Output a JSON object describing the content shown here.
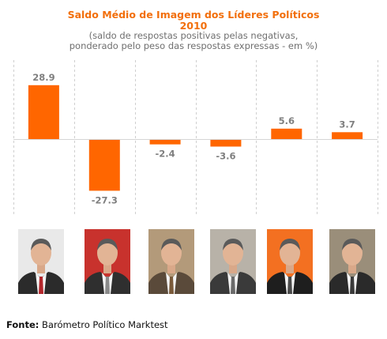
{
  "chart_data": {
    "type": "bar",
    "title": "Saldo Médio de Imagem dos Líderes Políticos",
    "title_year": "2010",
    "subtitle_line1": "(saldo de respostas positivas pelas negativas,",
    "subtitle_line2": "ponderado pelo peso das respostas expressas - em %)",
    "categories": [
      "",
      "",
      "",
      "",
      "",
      ""
    ],
    "values": [
      28.9,
      -27.3,
      -2.4,
      -3.6,
      5.6,
      3.7
    ],
    "value_labels": [
      "28.9",
      "-27.3",
      "-2.4",
      "-3.6",
      "5.6",
      "3.7"
    ],
    "ylim": [
      -30,
      32
    ],
    "grid": "vertical dashed separators",
    "legend": "none",
    "bar_color": "#ff6600",
    "label_color": "#7f7f7f"
  },
  "photos": [
    {
      "icon": "politician-portrait-1",
      "bg": "#e9e9e9",
      "suit": "#2b2b2b",
      "tie": "#b3262b"
    },
    {
      "icon": "politician-portrait-2",
      "bg": "#c8322d",
      "suit": "#2f2f2f",
      "tie": "#8a8a8a"
    },
    {
      "icon": "politician-portrait-3",
      "bg": "#b39a7a",
      "suit": "#5a4a3a",
      "tie": "#7a5a3a"
    },
    {
      "icon": "politician-portrait-4",
      "bg": "#b8b2a8",
      "suit": "#3a3a3a",
      "tie": "#6a6a6a"
    },
    {
      "icon": "politician-portrait-5",
      "bg": "#f37021",
      "suit": "#1e1e1e",
      "tie": "#4a4a4a"
    },
    {
      "icon": "politician-portrait-6",
      "bg": "#9a8e7a",
      "suit": "#2a2a2a",
      "tie": "#3a3a3a"
    }
  ],
  "source": {
    "label": "Fonte:",
    "text": "Barómetro Político Marktest"
  }
}
